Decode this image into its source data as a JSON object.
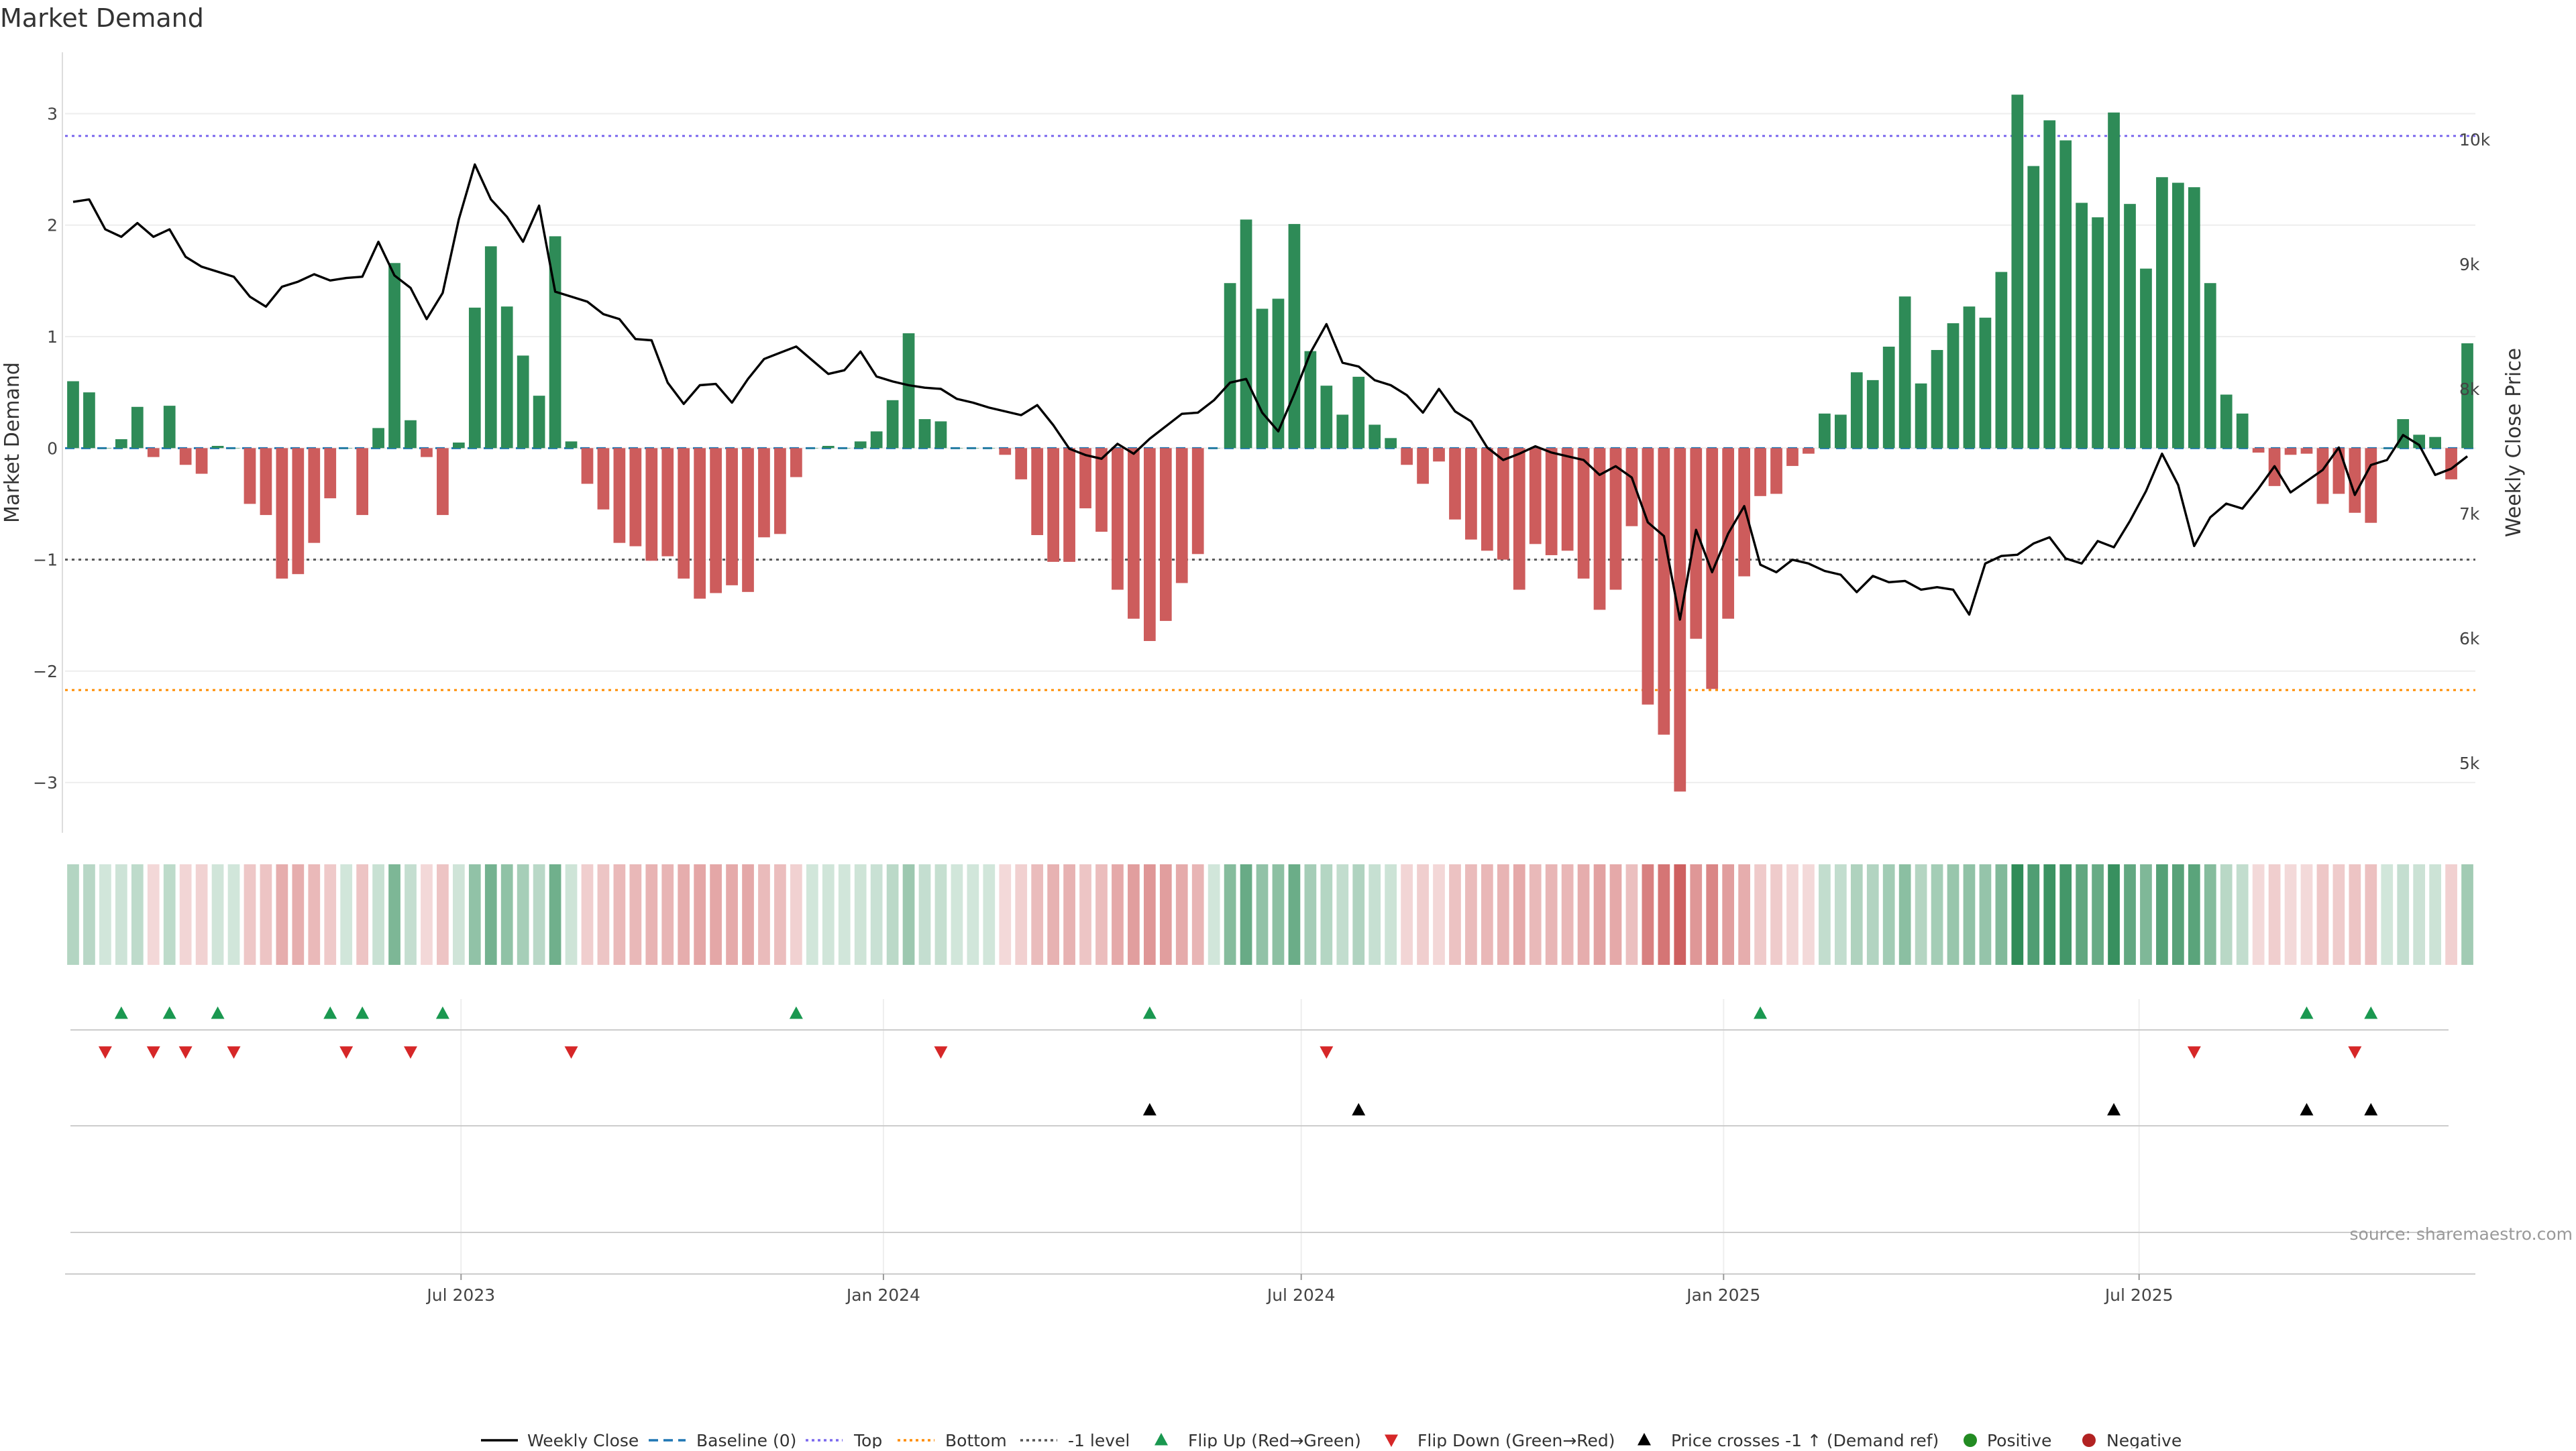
{
  "chart_data": {
    "type": "bar",
    "title": "Market Demand",
    "ylabel": "Market Demand",
    "y2label": "Weekly Close Price",
    "ylim": [
      -3.45,
      3.55
    ],
    "y2lim": [
      4440,
      10700
    ],
    "yticks": [
      "3",
      "2",
      "1",
      "0",
      "−1",
      "−2",
      "−3"
    ],
    "y2ticks": [
      "10k",
      "9k",
      "8k",
      "7k",
      "6k",
      "5k"
    ],
    "xticks": [
      "Jul 2023",
      "Jan 2024",
      "Jul 2024",
      "Jan 2025",
      "Jul 2025"
    ],
    "start_week": "2023-01-13",
    "reference_lines": {
      "baseline": 0,
      "top": 2.8,
      "bottom": -2.17,
      "minus_one": -1.0
    },
    "colors": {
      "positive": "#2e8b57",
      "negative": "#cd5c5c",
      "close": "#000000",
      "top": "#7b68ee",
      "bottom": "#ff8c00",
      "minus_one": "#555555",
      "baseline": "#1f77b4",
      "flip_up": "#1a9850",
      "flip_down": "#d62728",
      "cross": "#000000"
    },
    "series": [
      {
        "name": "Market Demand",
        "type": "bar",
        "values": [
          0.6,
          0.5,
          0,
          0.08,
          0.37,
          -0.08,
          0.38,
          -0.15,
          -0.23,
          0.02,
          0,
          -0.5,
          -0.6,
          -1.17,
          -1.13,
          -0.85,
          -0.45,
          0,
          -0.6,
          0.18,
          1.66,
          0.25,
          -0.08,
          -0.6,
          0.05,
          1.26,
          1.81,
          1.27,
          0.83,
          0.47,
          1.9,
          0.06,
          -0.32,
          -0.55,
          -0.85,
          -0.88,
          -1.01,
          -0.97,
          -1.17,
          -1.35,
          -1.3,
          -1.23,
          -1.29,
          -0.8,
          -0.77,
          -0.26,
          0,
          0.02,
          0,
          0.06,
          0.15,
          0.43,
          1.03,
          0.26,
          0.24,
          0,
          0,
          0,
          -0.06,
          -0.28,
          -0.78,
          -1.02,
          -1.02,
          -0.54,
          -0.75,
          -1.27,
          -1.53,
          -1.73,
          -1.55,
          -1.21,
          -0.95,
          0,
          1.48,
          2.05,
          1.25,
          1.34,
          2.01,
          0.87,
          0.56,
          0.3,
          0.64,
          0.21,
          0.09,
          -0.15,
          -0.32,
          -0.12,
          -0.64,
          -0.82,
          -0.92,
          -1.0,
          -1.27,
          -0.86,
          -0.96,
          -0.92,
          -1.17,
          -1.45,
          -1.27,
          -0.7,
          -2.3,
          -2.57,
          -3.08,
          -1.71,
          -2.16,
          -1.53,
          -1.15,
          -0.43,
          -0.41,
          -0.16,
          -0.05,
          0.31,
          0.3,
          0.68,
          0.61,
          0.91,
          1.36,
          0.58,
          0.88,
          1.12,
          1.27,
          1.17,
          1.58,
          3.17,
          2.53,
          2.94,
          2.76,
          2.2,
          2.07,
          3.01,
          2.19,
          1.61,
          2.43,
          2.38,
          2.34,
          1.48,
          0.48,
          0.31,
          -0.04,
          -0.34,
          -0.06,
          -0.05,
          -0.5,
          -0.41,
          -0.58,
          -0.67,
          0,
          0.26,
          0.12,
          0.1,
          -0.28,
          0.94
        ]
      },
      {
        "name": "Weekly Close",
        "type": "line",
        "values": [
          9500,
          9520,
          9280,
          9220,
          9330,
          9220,
          9280,
          9060,
          8980,
          8940,
          8900,
          8740,
          8660,
          8820,
          8860,
          8920,
          8870,
          8890,
          8900,
          9180,
          8910,
          8810,
          8560,
          8770,
          9360,
          9800,
          9520,
          9380,
          9180,
          9470,
          8780,
          8740,
          8700,
          8600,
          8560,
          8400,
          8390,
          8050,
          7880,
          8030,
          8040,
          7890,
          8080,
          8240,
          8290,
          8340,
          8230,
          8120,
          8150,
          8300,
          8100,
          8060,
          8030,
          8010,
          8000,
          7920,
          7890,
          7850,
          7820,
          7790,
          7870,
          7710,
          7520,
          7470,
          7440,
          7560,
          7480,
          7600,
          7700,
          7800,
          7810,
          7910,
          8050,
          8080,
          7810,
          7660,
          7960,
          8290,
          8520,
          8210,
          8180,
          8070,
          8030,
          7950,
          7810,
          8000,
          7820,
          7740,
          7530,
          7430,
          7480,
          7540,
          7490,
          7460,
          7430,
          7310,
          7380,
          7290,
          6930,
          6820,
          6150,
          6870,
          6530,
          6840,
          7060,
          6590,
          6530,
          6630,
          6600,
          6540,
          6510,
          6370,
          6500,
          6450,
          6460,
          6390,
          6410,
          6390,
          6190,
          6600,
          6660,
          6670,
          6760,
          6810,
          6640,
          6600,
          6780,
          6730,
          6940,
          7180,
          7480,
          7230,
          6740,
          6970,
          7080,
          7040,
          7200,
          7380,
          7170,
          7260,
          7350,
          7530,
          7150,
          7390,
          7430,
          7630,
          7550,
          7310,
          7360,
          7460
        ]
      },
      {
        "name": "Baseline (0)"
      },
      {
        "name": "Top"
      },
      {
        "name": "Bottom"
      },
      {
        "name": "-1 level"
      },
      {
        "name": "Flip Up (Red→Green)",
        "indices": [
          3,
          6,
          9,
          16,
          18,
          23,
          45,
          67,
          105,
          139,
          143
        ]
      },
      {
        "name": "Flip Down (Green→Red)",
        "indices": [
          2,
          5,
          7,
          10,
          17,
          21,
          31,
          54,
          78,
          132,
          142
        ]
      },
      {
        "name": "Price crosses -1 ↑ (Demand ref)",
        "indices": [
          67,
          80,
          127,
          139,
          143
        ]
      },
      {
        "name": "Positive"
      },
      {
        "name": "Negative"
      }
    ]
  },
  "legend": {
    "items": [
      {
        "label": "Weekly Close",
        "marker": "line",
        "color": "#000000"
      },
      {
        "label": "Baseline (0)",
        "marker": "dash",
        "color": "#1f77b4"
      },
      {
        "label": "Top",
        "marker": "dotted",
        "color": "#7b68ee"
      },
      {
        "label": "Bottom",
        "marker": "dotted",
        "color": "#ff8c00"
      },
      {
        "label": "-1 level",
        "marker": "dotted",
        "color": "#555555"
      },
      {
        "label": "Flip Up (Red→Green)",
        "marker": "tri-up",
        "color": "#1a9850"
      },
      {
        "label": "Flip Down (Green→Red)",
        "marker": "tri-down",
        "color": "#d62728"
      },
      {
        "label": "Price crosses -1 ↑ (Demand ref)",
        "marker": "tri-up",
        "color": "#000000"
      },
      {
        "label": "Positive",
        "marker": "dot",
        "color": "#228b22"
      },
      {
        "label": "Negative",
        "marker": "dot",
        "color": "#b22222"
      }
    ]
  },
  "source": "source: sharemaestro.com"
}
